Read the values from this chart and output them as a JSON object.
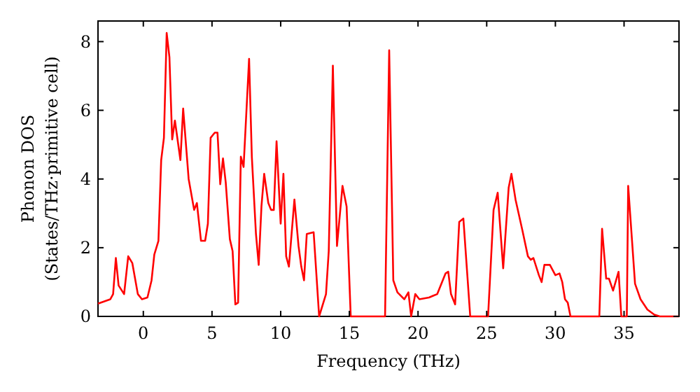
{
  "chart_data": {
    "type": "line",
    "xlabel": "Frequency (THz)",
    "ylabel": "Phonon DOS\n(States/THz·primitive cell)",
    "xlim": [
      -3.3,
      39
    ],
    "ylim": [
      0,
      8.6
    ],
    "xticks": [
      0,
      5,
      10,
      15,
      20,
      25,
      30,
      35
    ],
    "yticks": [
      0,
      2,
      4,
      6,
      8
    ],
    "grid": false,
    "marker": "none",
    "line_style": "solid",
    "series": [
      {
        "color": "#ff0000",
        "x": [
          -3.3,
          -2.4,
          -2.2,
          -2.0,
          -1.8,
          -1.4,
          -1.1,
          -0.8,
          -0.4,
          -0.1,
          0.3,
          0.6,
          0.8,
          1.1,
          1.3,
          1.5,
          1.7,
          1.9,
          2.1,
          2.3,
          2.7,
          2.9,
          3.3,
          3.7,
          3.9,
          4.2,
          4.5,
          4.7,
          4.9,
          5.2,
          5.4,
          5.6,
          5.8,
          6.0,
          6.3,
          6.5,
          6.7,
          6.9,
          7.1,
          7.3,
          7.7,
          7.9,
          8.2,
          8.4,
          8.6,
          8.8,
          9.1,
          9.3,
          9.5,
          9.7,
          10.0,
          10.2,
          10.4,
          10.6,
          11.0,
          11.3,
          11.5,
          11.7,
          11.9,
          12.4,
          12.8,
          13.3,
          13.5,
          13.8,
          14.1,
          14.5,
          14.8,
          15.1,
          17.6,
          17.9,
          18.2,
          18.5,
          19.0,
          19.3,
          19.5,
          19.8,
          20.1,
          20.8,
          21.1,
          21.4,
          22.0,
          22.2,
          22.4,
          22.7,
          23.0,
          23.3,
          23.8,
          25.1,
          25.5,
          25.8,
          26.2,
          26.6,
          26.8,
          27.1,
          27.6,
          28.0,
          28.2,
          28.4,
          28.8,
          29.0,
          29.2,
          29.6,
          30.0,
          30.3,
          30.5,
          30.7,
          30.9,
          31.1,
          33.2,
          33.4,
          33.7,
          33.9,
          34.2,
          34.6,
          34.8,
          35.2,
          35.3,
          35.8,
          36.2,
          36.7,
          37.2,
          37.6,
          39.0
        ],
        "values": [
          0.37,
          0.5,
          0.65,
          1.7,
          0.9,
          0.65,
          1.75,
          1.55,
          0.65,
          0.5,
          0.55,
          1.05,
          1.8,
          2.2,
          4.55,
          5.2,
          8.25,
          7.55,
          5.15,
          5.7,
          4.55,
          6.05,
          4.0,
          3.1,
          3.3,
          2.2,
          2.2,
          2.7,
          5.2,
          5.35,
          5.35,
          3.85,
          4.6,
          3.9,
          2.25,
          1.9,
          0.35,
          0.4,
          4.65,
          4.35,
          7.5,
          4.65,
          2.4,
          1.5,
          3.2,
          4.15,
          3.3,
          3.1,
          3.1,
          5.1,
          2.7,
          4.15,
          1.75,
          1.45,
          3.4,
          2.05,
          1.45,
          1.05,
          2.4,
          2.45,
          0,
          0.65,
          1.9,
          7.3,
          2.05,
          3.8,
          3.2,
          0,
          0,
          7.75,
          1.05,
          0.7,
          0.5,
          0.7,
          0,
          0.65,
          0.5,
          0.55,
          0.6,
          0.65,
          1.25,
          1.3,
          0.65,
          0.35,
          2.75,
          2.85,
          0,
          0,
          3.1,
          3.6,
          1.4,
          3.75,
          4.15,
          3.4,
          2.5,
          1.75,
          1.65,
          1.7,
          1.2,
          1.0,
          1.5,
          1.5,
          1.2,
          1.25,
          1.0,
          0.5,
          0.4,
          0,
          0,
          2.55,
          1.1,
          1.1,
          0.75,
          1.3,
          0,
          0,
          3.8,
          0.95,
          0.5,
          0.2,
          0.05,
          0,
          0
        ]
      }
    ]
  }
}
